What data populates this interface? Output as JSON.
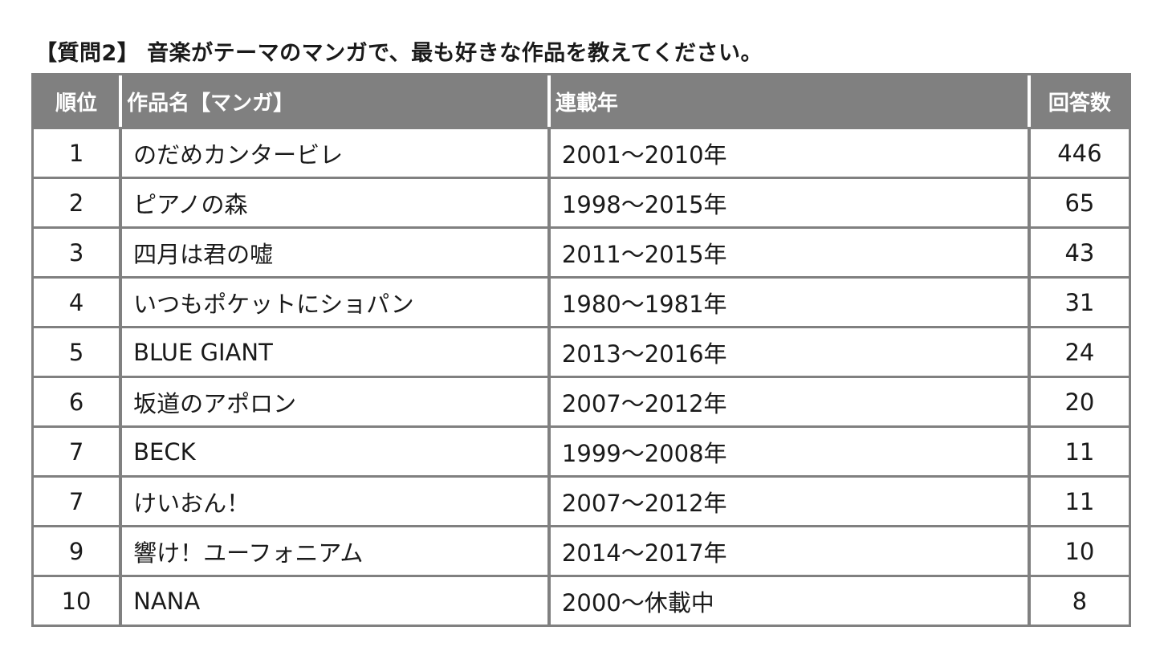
{
  "title": "【質問2】 音楽がテーマのマンガで、最も好きな作品を教えてください。",
  "table": {
    "headers": {
      "rank": "順位",
      "title": "作品名【マンガ】",
      "years": "連載年",
      "count": "回答数"
    },
    "rows": [
      {
        "rank": "1",
        "title": "のだめカンタービレ",
        "years": "2001～2010年",
        "count": "446"
      },
      {
        "rank": "2",
        "title": "ピアノの森",
        "years": "1998～2015年",
        "count": "65"
      },
      {
        "rank": "3",
        "title": "四月は君の嘘",
        "years": "2011～2015年",
        "count": "43"
      },
      {
        "rank": "4",
        "title": "いつもポケットにショパン",
        "years": "1980～1981年",
        "count": "31"
      },
      {
        "rank": "5",
        "title": "BLUE GIANT",
        "years": "2013～2016年",
        "count": "24"
      },
      {
        "rank": "6",
        "title": "坂道のアポロン",
        "years": "2007～2012年",
        "count": "20"
      },
      {
        "rank": "7",
        "title": "BECK",
        "years": "1999～2008年",
        "count": "11"
      },
      {
        "rank": "7",
        "title": "けいおん！",
        "years": "2007～2012年",
        "count": "11"
      },
      {
        "rank": "9",
        "title": "響け！ユーフォニアム",
        "years": "2014～2017年",
        "count": "10"
      },
      {
        "rank": "10",
        "title": "NANA",
        "years": "2000～休載中",
        "count": "8"
      }
    ]
  },
  "colors": {
    "header_bg": "#808080",
    "header_text": "#ffffff",
    "border": "#808080"
  }
}
